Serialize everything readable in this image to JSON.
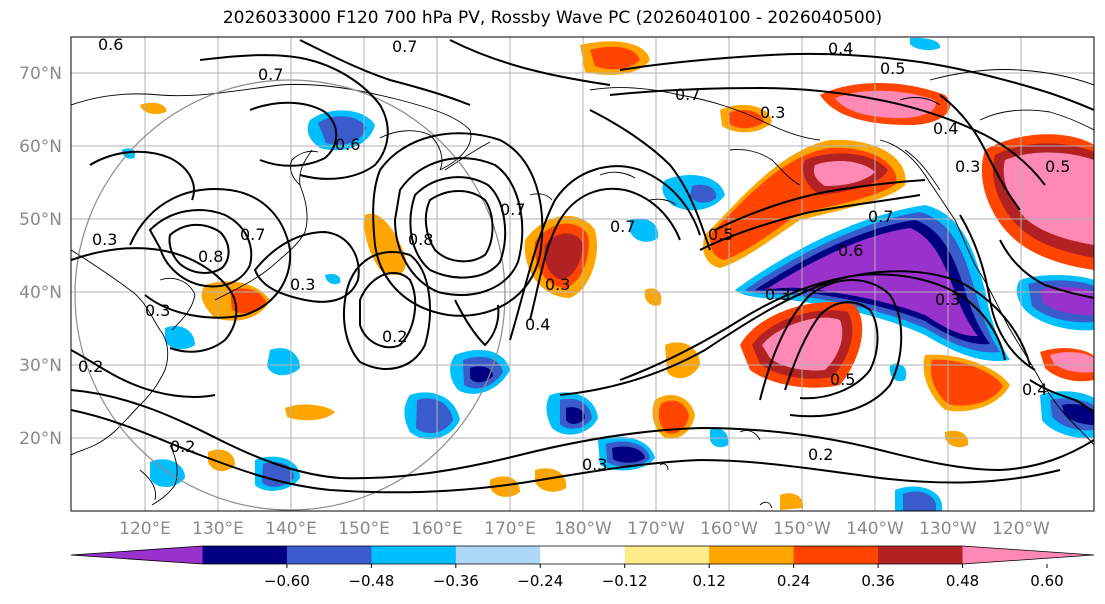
{
  "title": "2026033000 F120 700 hPa PV, Rossby Wave PC (2026040100 - 2026040500)",
  "axes": {
    "lat_labels": [
      "70°N",
      "60°N",
      "50°N",
      "40°N",
      "30°N",
      "20°N"
    ],
    "lon_labels": [
      "120°E",
      "130°E",
      "140°E",
      "150°E",
      "160°E",
      "170°E",
      "180°W",
      "170°W",
      "160°W",
      "150°W",
      "140°W",
      "130°W",
      "120°W"
    ]
  },
  "colorbar": {
    "colors": [
      "#9932CC",
      "#000080",
      "#3A5CCB",
      "#00BFFF",
      "#ADD8F7",
      "#FFFFFF",
      "#FFEB8A",
      "#FFA500",
      "#FF4500",
      "#B22222",
      "#FF89B4"
    ],
    "ticks": [
      "−0.60",
      "−0.48",
      "−0.36",
      "−0.24",
      "−0.12",
      "0.12",
      "0.24",
      "0.36",
      "0.48",
      "0.60"
    ],
    "extend": "both"
  },
  "contour_labels": [
    "0.6",
    "0.7",
    "0.7",
    "0.4",
    "0.5",
    "0.7",
    "0.4",
    "0.3",
    "0.5",
    "0.3",
    "0.8",
    "0.7",
    "0.6",
    "0.8",
    "0.7",
    "0.7",
    "0.3",
    "0.5",
    "0.6",
    "0.7",
    "0.3",
    "0.2",
    "0.3",
    "0.2",
    "0.4",
    "0.3",
    "0.5",
    "0.3",
    "0.2",
    "0.3",
    "0.2",
    "0.4",
    "0.3"
  ]
}
